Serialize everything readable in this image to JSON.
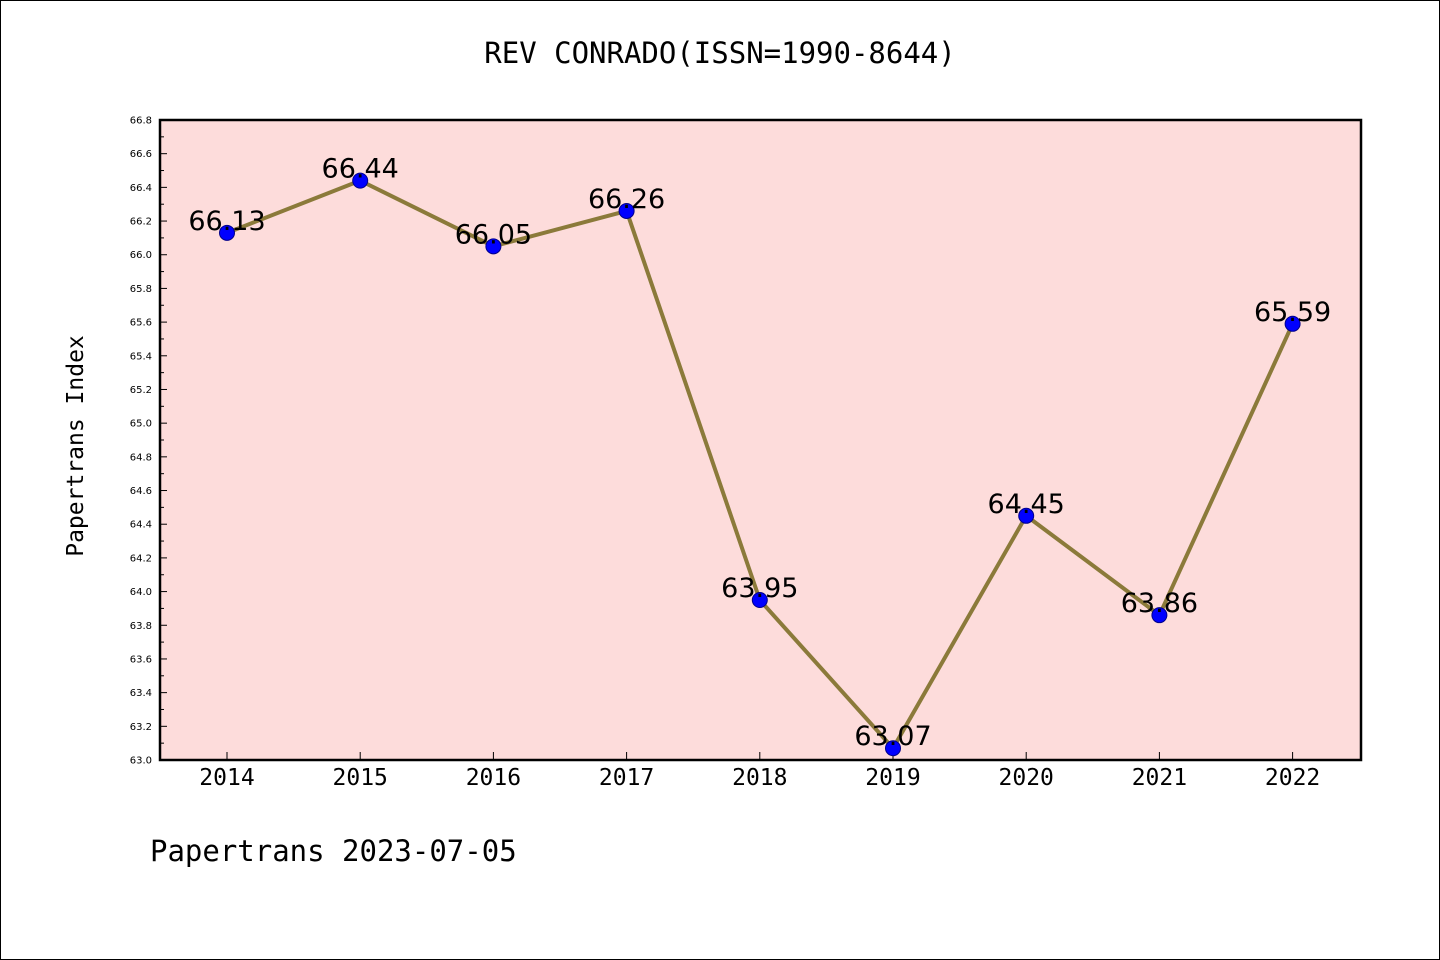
{
  "page": {
    "footer": "Papertrans 2023-07-05"
  },
  "colors": {
    "plot_background": "#fddcdb",
    "line": "#8b7a3a",
    "marker_fill": "#0000ff",
    "marker_edge": "#00008b"
  },
  "chart_data": {
    "type": "line",
    "title": "REV CONRADO(ISSN=1990-8644)",
    "xlabel": "",
    "ylabel": "Papertrans Index",
    "categories": [
      "2014",
      "2015",
      "2016",
      "2017",
      "2018",
      "2019",
      "2020",
      "2021",
      "2022"
    ],
    "series": [
      {
        "values": [
          66.13,
          66.44,
          66.05,
          66.26,
          63.95,
          63.07,
          64.45,
          63.86,
          65.59
        ],
        "labels": [
          "66.13",
          "66.44",
          "66.05",
          "66.26",
          "63.95",
          "63.07",
          "64.45",
          "63.86",
          "65.59"
        ]
      }
    ],
    "ylim": [
      63.0,
      66.8
    ],
    "yticks": [
      "63.0",
      "63.2",
      "63.4",
      "63.6",
      "63.8",
      "64.0",
      "64.2",
      "64.4",
      "64.6",
      "64.8",
      "65.0",
      "65.2",
      "65.4",
      "65.6",
      "65.8",
      "66.0",
      "66.2",
      "66.4",
      "66.6",
      "66.8"
    ],
    "grid": false,
    "legend": "none"
  }
}
